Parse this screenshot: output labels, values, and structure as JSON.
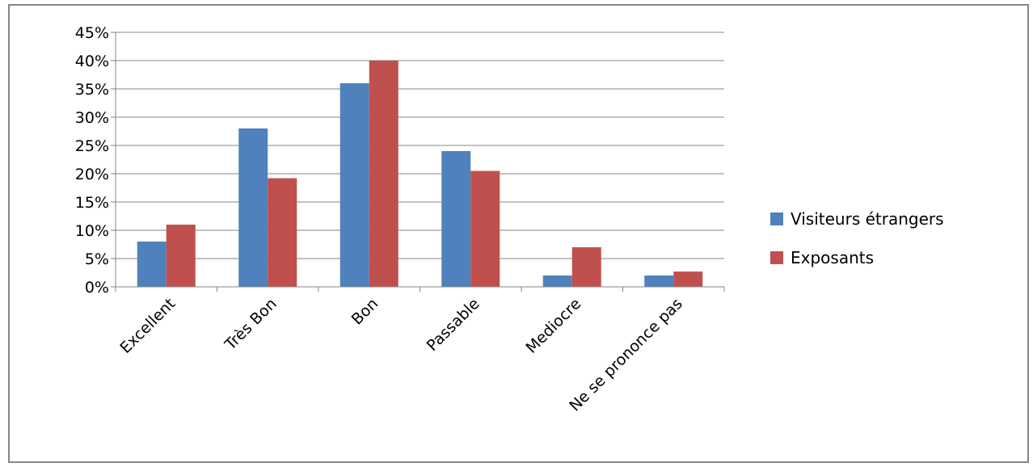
{
  "chart_data": {
    "type": "bar",
    "categories": [
      "Excellent",
      "Très Bon",
      "Bon",
      "Passable",
      "Mediocre",
      "Ne se prononce pas"
    ],
    "series": [
      {
        "name": "Visiteurs étrangers",
        "values": [
          8,
          28,
          36,
          24,
          2,
          2
        ],
        "color": "#4F81BD"
      },
      {
        "name": "Exposants",
        "values": [
          11,
          19.2,
          40,
          20.5,
          7,
          2.7
        ],
        "color": "#C0504D"
      }
    ],
    "yticks": [
      "0%",
      "5%",
      "10%",
      "15%",
      "20%",
      "25%",
      "30%",
      "35%",
      "40%",
      "45%"
    ],
    "ylim": [
      0,
      45
    ],
    "grid": true,
    "legend": "right"
  }
}
